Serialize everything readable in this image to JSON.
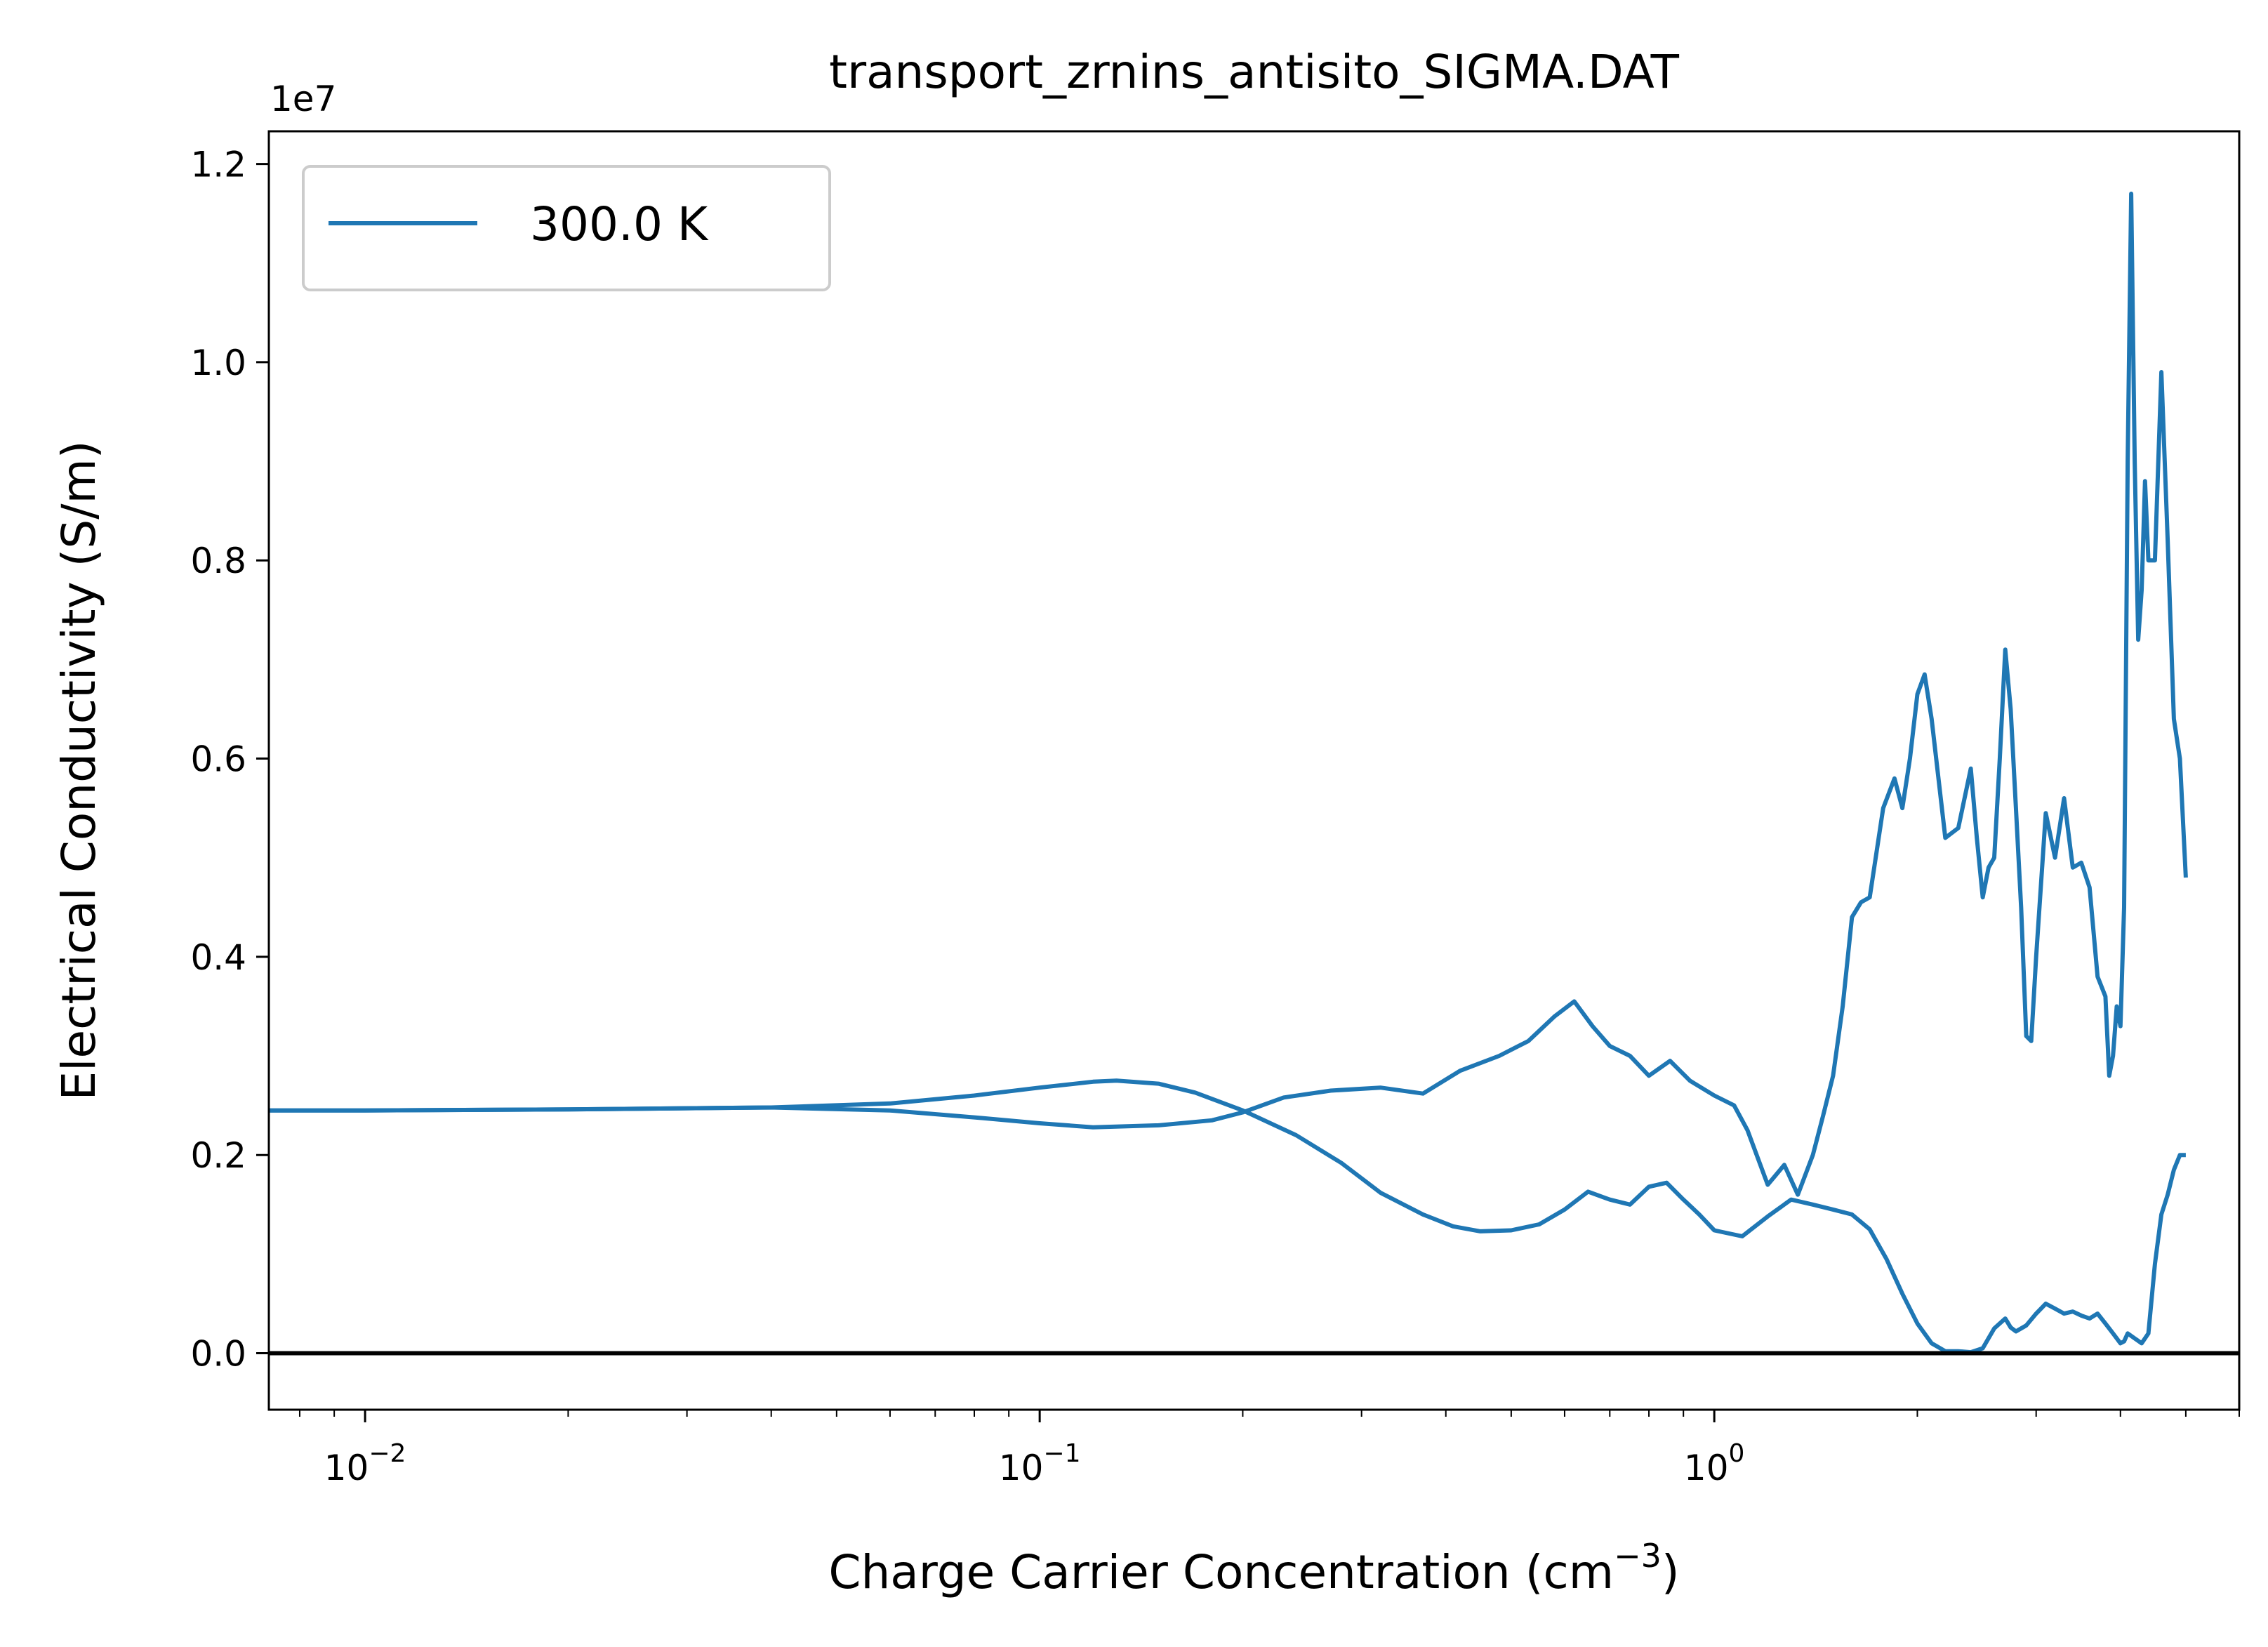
{
  "chart_data": {
    "type": "line",
    "title": "transport_zrnins_antisito_SIGMA.DAT",
    "xlabel": "Charge Carrier Concentration (cm",
    "xlabel_sup": "−3",
    "xlabel_close": ")",
    "ylabel": "Electrical Conductivity (S/m)",
    "y_offset_text": "1e7",
    "xscale": "log",
    "xlim": [
      0.0072,
      6.0
    ],
    "ylim": [
      -0.057,
      1.233
    ],
    "x_ticks": [
      {
        "value": 0.01,
        "base": "10",
        "exp": "−2"
      },
      {
        "value": 0.1,
        "base": "10",
        "exp": "−1"
      },
      {
        "value": 1,
        "base": "10",
        "exp": "0"
      }
    ],
    "y_ticks": [
      {
        "value": 0.0,
        "label": "0.0"
      },
      {
        "value": 0.2,
        "label": "0.2"
      },
      {
        "value": 0.4,
        "label": "0.4"
      },
      {
        "value": 0.6,
        "label": "0.6"
      },
      {
        "value": 0.8,
        "label": "0.8"
      },
      {
        "value": 1.0,
        "label": "1.0"
      },
      {
        "value": 1.2,
        "label": "1.2"
      }
    ],
    "hline_y": 0.0,
    "legend": {
      "position": "upper-left"
    },
    "grid": false,
    "series": [
      {
        "name": "300.0 K",
        "color": "#1f77b4",
        "branches": [
          {
            "x": [
              0.0072,
              0.01,
              0.02,
              0.04,
              0.06,
              0.08,
              0.1,
              0.12,
              0.13,
              0.15,
              0.17,
              0.2,
              0.24,
              0.28,
              0.32,
              0.37,
              0.41,
              0.45,
              0.5,
              0.55,
              0.6,
              0.65,
              0.7,
              0.75,
              0.8,
              0.85,
              0.9,
              0.95,
              1.0,
              1.1,
              1.2,
              1.3,
              1.4,
              1.5,
              1.6,
              1.7,
              1.8,
              1.9,
              2.0,
              2.1,
              2.2,
              2.3,
              2.4,
              2.5,
              2.6,
              2.7,
              2.75,
              2.8,
              2.9,
              3.0,
              3.1,
              3.2,
              3.3,
              3.4,
              3.5,
              3.6,
              3.7,
              3.8,
              3.9,
              4.0,
              4.05,
              4.1,
              4.2,
              4.3,
              4.4,
              4.5,
              4.6,
              4.7,
              4.8,
              4.9,
              5.0
            ],
            "y": [
              0.245,
              0.245,
              0.246,
              0.248,
              0.252,
              0.26,
              0.268,
              0.274,
              0.275,
              0.272,
              0.263,
              0.245,
              0.22,
              0.192,
              0.162,
              0.14,
              0.128,
              0.123,
              0.124,
              0.13,
              0.145,
              0.163,
              0.155,
              0.15,
              0.168,
              0.172,
              0.155,
              0.14,
              0.124,
              0.118,
              0.138,
              0.155,
              0.15,
              0.145,
              0.14,
              0.125,
              0.095,
              0.06,
              0.03,
              0.01,
              0.002,
              0.002,
              0.001,
              0.005,
              0.025,
              0.035,
              0.026,
              0.022,
              0.028,
              0.04,
              0.05,
              0.045,
              0.04,
              0.042,
              0.038,
              0.035,
              0.04,
              0.03,
              0.02,
              0.01,
              0.012,
              0.02,
              0.015,
              0.01,
              0.02,
              0.09,
              0.14,
              0.16,
              0.185,
              0.2,
              0.2
            ]
          },
          {
            "x": [
              0.0072,
              0.01,
              0.02,
              0.04,
              0.06,
              0.08,
              0.1,
              0.12,
              0.15,
              0.18,
              0.2,
              0.23,
              0.27,
              0.32,
              0.37,
              0.42,
              0.48,
              0.53,
              0.58,
              0.62,
              0.66,
              0.7,
              0.75,
              0.8,
              0.86,
              0.92,
              1.0,
              1.07,
              1.12,
              1.2,
              1.27,
              1.33,
              1.4,
              1.45,
              1.5,
              1.55,
              1.6,
              1.65,
              1.7,
              1.78,
              1.85,
              1.9,
              1.95,
              2.0,
              2.05,
              2.1,
              2.2,
              2.3,
              2.4,
              2.45,
              2.5,
              2.55,
              2.6,
              2.65,
              2.7,
              2.75,
              2.8,
              2.85,
              2.9,
              2.95,
              3.0,
              3.1,
              3.2,
              3.3,
              3.4,
              3.5,
              3.6,
              3.7,
              3.8,
              3.85,
              3.9,
              3.95,
              4.0,
              4.05,
              4.1,
              4.15,
              4.2,
              4.25,
              4.3,
              4.35,
              4.4,
              4.5,
              4.6,
              4.7,
              4.8,
              4.85,
              4.9,
              5.0
            ],
            "y": [
              0.245,
              0.245,
              0.246,
              0.248,
              0.245,
              0.238,
              0.232,
              0.228,
              0.23,
              0.235,
              0.243,
              0.258,
              0.265,
              0.268,
              0.262,
              0.285,
              0.3,
              0.315,
              0.34,
              0.355,
              0.33,
              0.31,
              0.3,
              0.28,
              0.295,
              0.275,
              0.26,
              0.25,
              0.225,
              0.17,
              0.19,
              0.16,
              0.2,
              0.24,
              0.28,
              0.35,
              0.44,
              0.455,
              0.46,
              0.55,
              0.58,
              0.55,
              0.6,
              0.665,
              0.685,
              0.64,
              0.52,
              0.53,
              0.59,
              0.52,
              0.46,
              0.49,
              0.5,
              0.6,
              0.71,
              0.65,
              0.55,
              0.45,
              0.32,
              0.315,
              0.4,
              0.545,
              0.5,
              0.56,
              0.49,
              0.495,
              0.47,
              0.38,
              0.36,
              0.28,
              0.3,
              0.35,
              0.33,
              0.45,
              0.9,
              1.17,
              0.9,
              0.72,
              0.77,
              0.88,
              0.8,
              0.8,
              0.99,
              0.82,
              0.64,
              0.62,
              0.6,
              0.48
            ]
          }
        ]
      }
    ]
  }
}
